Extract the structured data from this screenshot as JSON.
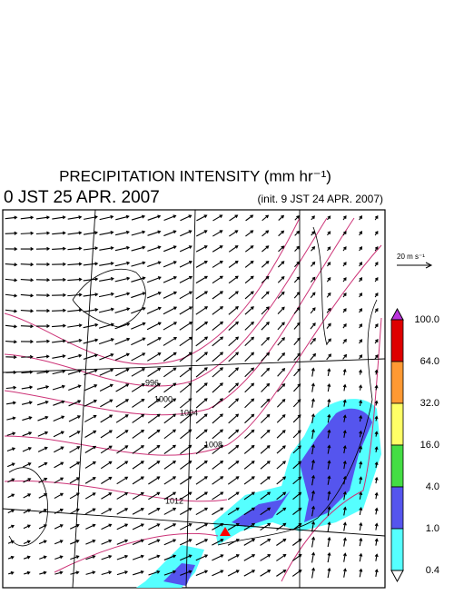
{
  "header": {
    "title": "PRECIPITATION INTENSITY (mm hr⁻¹)",
    "valid_time": "0 JST 25 APR. 2007",
    "init_time": "(init. 9 JST 24 APR. 2007)"
  },
  "wind_scale": {
    "label": "20 m s⁻¹"
  },
  "colorbar": {
    "labels": [
      "100.0",
      "64.0",
      "32.0",
      "16.0",
      "4.0",
      "1.0",
      "0.4"
    ],
    "colors": [
      "#dd0000",
      "#ff9933",
      "#ffff66",
      "#44dd44",
      "#5555ee",
      "#55ffff"
    ],
    "over_color": "#bb33dd",
    "under_color": "#ffffff"
  },
  "contour_labels": [
    "996",
    "1000",
    "1004",
    "1008",
    "1012"
  ]
}
